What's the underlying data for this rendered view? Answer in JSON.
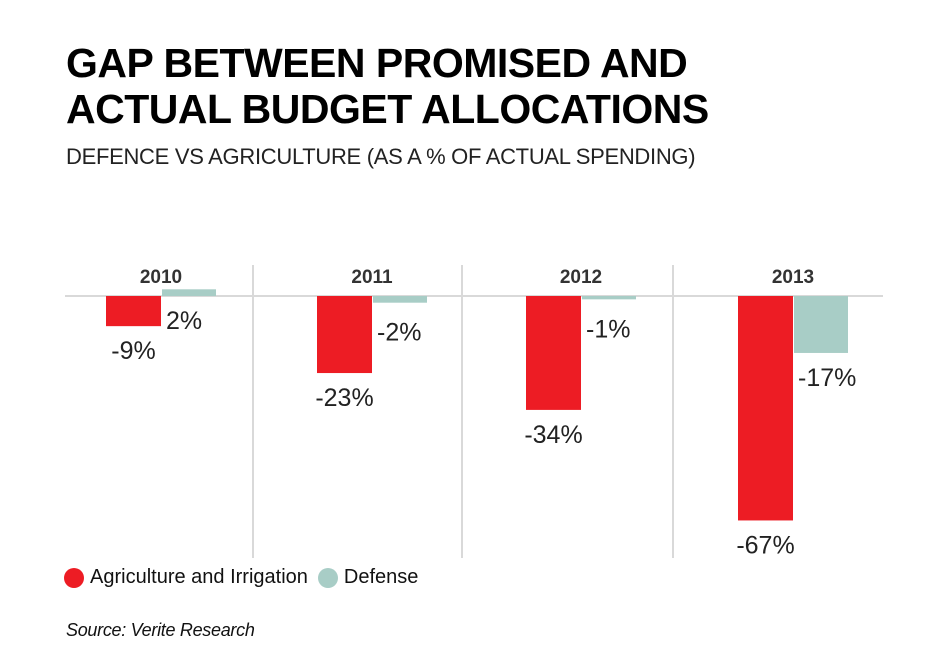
{
  "header": {
    "title_line1": "GAP BETWEEN PROMISED AND",
    "title_line2": "ACTUAL BUDGET ALLOCATIONS",
    "subtitle": "DEFENCE VS AGRICULTURE (AS A % OF ACTUAL SPENDING)"
  },
  "legend": {
    "items": [
      {
        "label": "Agriculture and Irrigation",
        "color": "#ed1c24"
      },
      {
        "label": "Defense",
        "color": "#a8cdc6"
      }
    ]
  },
  "source": "Source: Verite Research",
  "colors": {
    "agriculture": "#ed1c24",
    "defense": "#a8cdc6",
    "gridline": "#d9d9d9",
    "label_text": "#222222",
    "year_text": "#333333"
  },
  "chart_data": {
    "type": "bar",
    "title": "GAP BETWEEN PROMISED AND ACTUAL BUDGET ALLOCATIONS",
    "subtitle": "DEFENCE VS AGRICULTURE (AS A % OF ACTUAL SPENDING)",
    "xlabel": "",
    "ylabel": "% of actual spending",
    "categories": [
      "2010",
      "2011",
      "2012",
      "2013"
    ],
    "series": [
      {
        "name": "Agriculture and Irrigation",
        "values": [
          -9,
          -23,
          -34,
          -67
        ],
        "labels": [
          "-9%",
          "-23%",
          "-34%",
          "-67%"
        ]
      },
      {
        "name": "Defense",
        "values": [
          2,
          -2,
          -1,
          -17
        ],
        "labels": [
          "2%",
          "-2%",
          "-1%",
          "-17%"
        ]
      }
    ],
    "ylim": [
      -67,
      2
    ],
    "grid": false,
    "legend_position": "bottom-left",
    "units": "%"
  }
}
